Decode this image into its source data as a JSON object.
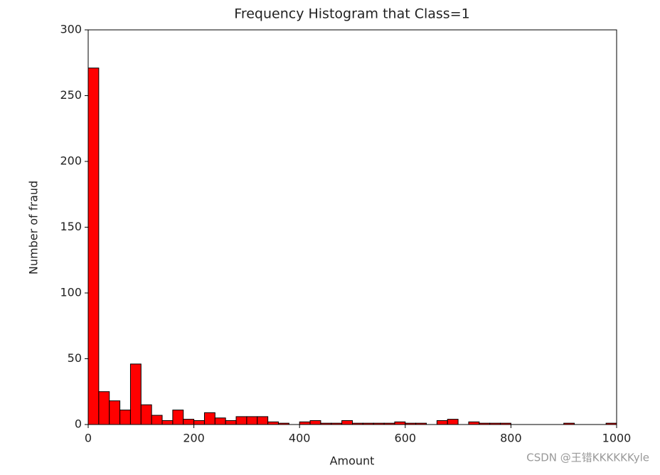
{
  "chart_data": {
    "type": "histogram",
    "title": "Frequency Histogram that Class=1",
    "x_label": "Amount",
    "y_label": "Number of fraud",
    "bins": [
      0,
      20,
      40,
      60,
      80,
      100,
      120,
      140,
      160,
      180,
      200,
      220,
      240,
      260,
      280,
      300,
      320,
      340,
      360,
      380,
      400,
      420,
      440,
      460,
      480,
      500,
      520,
      540,
      560,
      580,
      600,
      620,
      640,
      660,
      680,
      700,
      720,
      740,
      760,
      780,
      800,
      820,
      840,
      860,
      880,
      900,
      920,
      940,
      960,
      980,
      1000
    ],
    "values": [
      271,
      25,
      18,
      11,
      46,
      15,
      7,
      3,
      11,
      4,
      3,
      9,
      5,
      3,
      6,
      6,
      6,
      2,
      1,
      0,
      2,
      3,
      1,
      1,
      3,
      1,
      1,
      1,
      1,
      2,
      1,
      1,
      0,
      3,
      4,
      0,
      2,
      1,
      1,
      1,
      0,
      0,
      0,
      0,
      0,
      1,
      0,
      0,
      0,
      1
    ],
    "color": "#ff0000",
    "edgecolor": "#000000",
    "xlim": [
      0,
      1000
    ],
    "xticks": [
      0,
      200,
      400,
      600,
      800,
      1000
    ],
    "ylim": [
      0,
      300
    ],
    "yticks": [
      0,
      50,
      100,
      150,
      200,
      250,
      300
    ],
    "grid": false
  },
  "watermark": "CSDN @王错KKKKKKyle"
}
